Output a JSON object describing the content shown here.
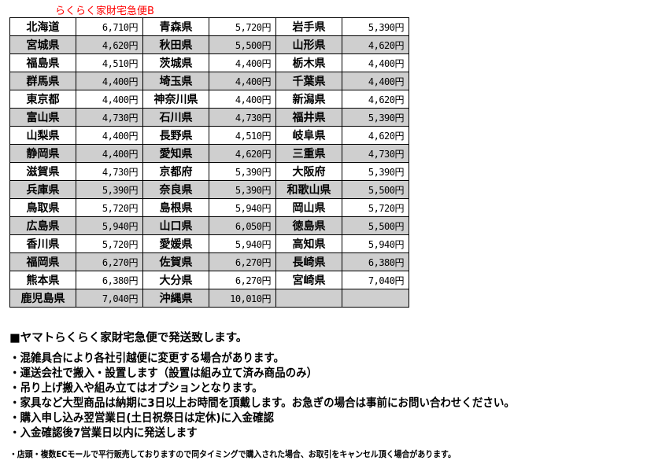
{
  "title": "らくらく家財宅急便B",
  "rows": [
    [
      [
        "北海道",
        "6,710円"
      ],
      [
        "青森県",
        "5,720円"
      ],
      [
        "岩手県",
        "5,390円"
      ]
    ],
    [
      [
        "宮城県",
        "4,620円"
      ],
      [
        "秋田県",
        "5,500円"
      ],
      [
        "山形県",
        "4,620円"
      ]
    ],
    [
      [
        "福島県",
        "4,510円"
      ],
      [
        "茨城県",
        "4,400円"
      ],
      [
        "栃木県",
        "4,400円"
      ]
    ],
    [
      [
        "群馬県",
        "4,400円"
      ],
      [
        "埼玉県",
        "4,400円"
      ],
      [
        "千葉県",
        "4,400円"
      ]
    ],
    [
      [
        "東京都",
        "4,400円"
      ],
      [
        "神奈川県",
        "4,400円"
      ],
      [
        "新潟県",
        "4,620円"
      ]
    ],
    [
      [
        "富山県",
        "4,730円"
      ],
      [
        "石川県",
        "4,730円"
      ],
      [
        "福井県",
        "5,390円"
      ]
    ],
    [
      [
        "山梨県",
        "4,400円"
      ],
      [
        "長野県",
        "4,510円"
      ],
      [
        "岐阜県",
        "4,620円"
      ]
    ],
    [
      [
        "静岡県",
        "4,400円"
      ],
      [
        "愛知県",
        "4,620円"
      ],
      [
        "三重県",
        "4,730円"
      ]
    ],
    [
      [
        "滋賀県",
        "4,730円"
      ],
      [
        "京都府",
        "5,390円"
      ],
      [
        "大阪府",
        "5,390円"
      ]
    ],
    [
      [
        "兵庫県",
        "5,390円"
      ],
      [
        "奈良県",
        "5,390円"
      ],
      [
        "和歌山県",
        "5,500円"
      ]
    ],
    [
      [
        "鳥取県",
        "5,720円"
      ],
      [
        "島根県",
        "5,940円"
      ],
      [
        "岡山県",
        "5,720円"
      ]
    ],
    [
      [
        "広島県",
        "5,940円"
      ],
      [
        "山口県",
        "6,050円"
      ],
      [
        "徳島県",
        "5,500円"
      ]
    ],
    [
      [
        "香川県",
        "5,720円"
      ],
      [
        "愛媛県",
        "5,940円"
      ],
      [
        "高知県",
        "5,940円"
      ]
    ],
    [
      [
        "福岡県",
        "6,270円"
      ],
      [
        "佐賀県",
        "6,270円"
      ],
      [
        "長崎県",
        "6,380円"
      ]
    ],
    [
      [
        "熊本県",
        "6,380円"
      ],
      [
        "大分県",
        "6,270円"
      ],
      [
        "宮崎県",
        "7,040円"
      ]
    ],
    [
      [
        "鹿児島県",
        "7,040円"
      ],
      [
        "沖縄県",
        "10,010円"
      ],
      [
        "",
        ""
      ]
    ]
  ],
  "notes": {
    "heading": "■ヤマトらくらく家財宅急便で発送致します。",
    "lines": [
      "・混雑具合により各社引越便に変更する場合があります。",
      "・運送会社で搬入・設置します（設置は組み立て済み商品のみ）",
      "・吊り上げ搬入や組み立てはオプションとなります。",
      "・家具など大型商品は納期に3日以上お時間を頂戴します。お急ぎの場合は事前にお問い合わせください。",
      "・購入申し込み翌営業日(土日祝祭日は定休)に入金確認",
      "・入金確認後7営業日以内に発送します"
    ],
    "small": "・店頭・複数ECモールで平行販売しておりますので同タイミングで購入された場合、お取引をキャンセル頂く場合があります。"
  }
}
